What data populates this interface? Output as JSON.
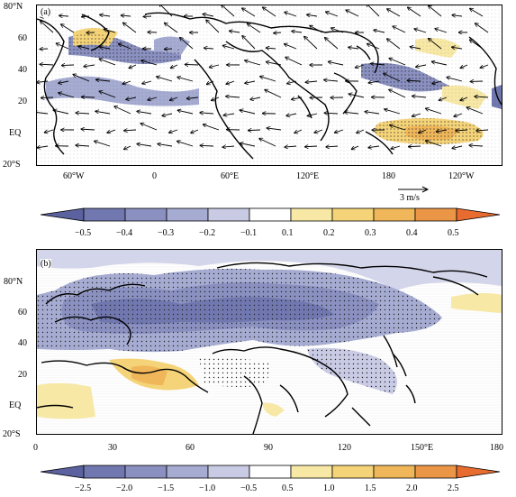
{
  "panel_a": {
    "label": "(a)",
    "y_labels": [
      "20°S",
      "EQ",
      "20",
      "40",
      "60",
      "80°N"
    ],
    "x_labels": [
      "60°W",
      "0",
      "60°E",
      "120°E",
      "180",
      "120°W"
    ],
    "ref_vector_label": "3 m/s"
  },
  "colorbar_a": {
    "labels": [
      "−0.5",
      "−0.4",
      "−0.3",
      "−0.2",
      "−0.1",
      "0.1",
      "0.2",
      "0.3",
      "0.4",
      "0.5"
    ],
    "colors": [
      "#5b629f",
      "#7178b0",
      "#8a90c0",
      "#a6abd2",
      "#c9cbe5",
      "#ffffff",
      "#f7e8a6",
      "#f5d479",
      "#f0b75a",
      "#eb9647",
      "#e86b2f"
    ]
  },
  "panel_b": {
    "label": "(b)",
    "y_labels": [
      "20°S",
      "EQ",
      "20",
      "40",
      "60",
      "80°N"
    ],
    "x_labels": [
      "0",
      "30",
      "60",
      "90",
      "120",
      "150°E",
      "180"
    ]
  },
  "colorbar_b": {
    "labels": [
      "−2.5",
      "−2.0",
      "−1.5",
      "−1.0",
      "−0.5",
      "0.5",
      "1.0",
      "1.5",
      "2.0",
      "2.5"
    ],
    "colors": [
      "#5b629f",
      "#7178b0",
      "#8a90c0",
      "#a6abd2",
      "#c9cbe5",
      "#ffffff",
      "#f7e8a6",
      "#f5d479",
      "#f0b75a",
      "#eb9647",
      "#e86b2f"
    ]
  }
}
